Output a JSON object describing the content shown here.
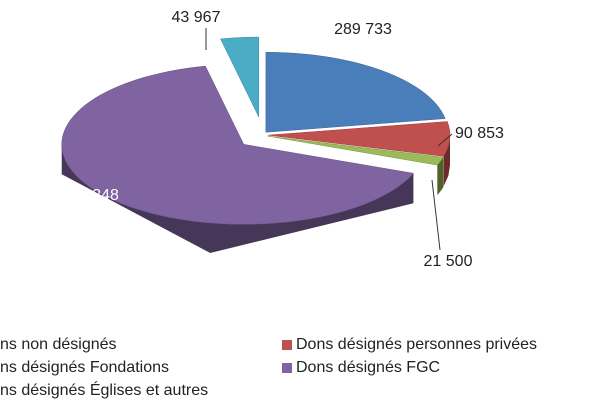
{
  "chart_data": {
    "type": "pie",
    "categories": [
      "ns non désignés",
      "Dons désignés personnes privées",
      "ns désignés Fondations",
      "Dons désignés FGC",
      "ns désignés Églises et autres"
    ],
    "values": [
      289733,
      90853,
      21500,
      855348,
      43967
    ],
    "value_labels": [
      "289 733",
      "90 853",
      "21 500",
      "855 348",
      "43 967"
    ],
    "colors": [
      "#4a7ebb",
      "#c0504d",
      "#9bbb59",
      "#8064a2",
      "#4bacc6"
    ],
    "legend": "bottom"
  }
}
